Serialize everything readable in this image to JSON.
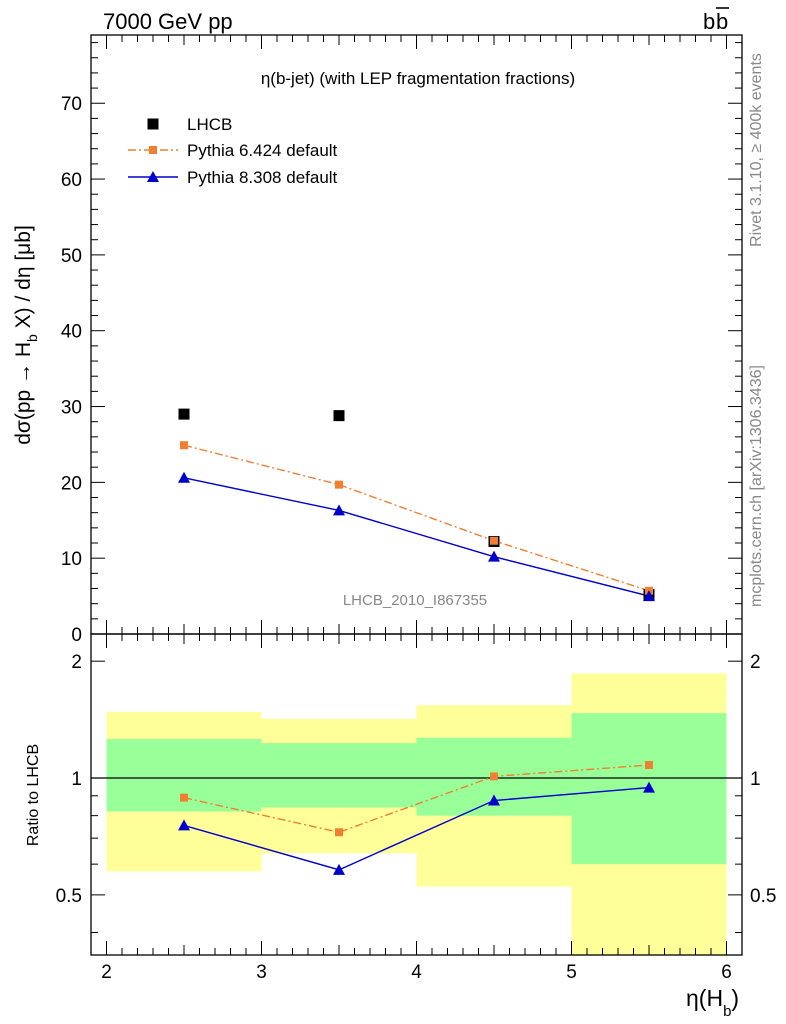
{
  "header": {
    "left": "7000 GeV pp",
    "right": "b",
    "right_bar": "b"
  },
  "side_text": {
    "top": "Rivet 3.1.10, ≥ 400k events",
    "bottom": "mcplots.cern.ch [arXiv:1306.3436]"
  },
  "colors": {
    "data": "#000000",
    "pythia6": "#f07f33",
    "pythia8": "#0000cc",
    "band_outer": "#ffff99",
    "band_inner": "#99ff99"
  },
  "chart_data": [
    {
      "type": "scatter",
      "title": "η(b-jet) (with LEP fragmentation fractions)",
      "ylabel": "dσ(pp → H_b X) / dη [μb]",
      "analysis_label": "LHCB_2010_I867355",
      "xlim": [
        1.9,
        6.1
      ],
      "ylim": [
        0,
        79
      ],
      "yticks": [
        0,
        10,
        20,
        30,
        40,
        50,
        60,
        70
      ],
      "legend_position": "top-left",
      "x": [
        2.5,
        3.5,
        4.5,
        5.5
      ],
      "series": [
        {
          "name": "LHCB",
          "style": "data",
          "values": [
            29.0,
            28.8,
            12.2,
            5.2
          ]
        },
        {
          "name": "Pythia 6.424 default",
          "style": "pythia6",
          "values": [
            24.9,
            19.7,
            12.3,
            5.7
          ]
        },
        {
          "name": "Pythia 8.308 default",
          "style": "pythia8",
          "values": [
            20.6,
            16.3,
            10.2,
            5.0
          ]
        }
      ]
    },
    {
      "type": "line",
      "ylabel": "Ratio to LHCB",
      "xlabel": "η(H_b)",
      "xlim": [
        1.9,
        6.1
      ],
      "ylim": [
        0.35,
        2.35
      ],
      "yscale": "log",
      "yticks": [
        0.5,
        1,
        2
      ],
      "xticks": [
        2,
        3,
        4,
        5,
        6
      ],
      "reference_line": 1,
      "bins": [
        {
          "low": 2,
          "high": 3,
          "inner": [
            0.82,
            1.26
          ],
          "outer": [
            0.575,
            1.48
          ]
        },
        {
          "low": 3,
          "high": 4,
          "inner": [
            0.84,
            1.23
          ],
          "outer": [
            0.64,
            1.42
          ]
        },
        {
          "low": 4,
          "high": 5,
          "inner": [
            0.8,
            1.27
          ],
          "outer": [
            0.525,
            1.54
          ]
        },
        {
          "low": 5,
          "high": 6,
          "inner": [
            0.6,
            1.47
          ],
          "outer": [
            0.35,
            1.86
          ]
        }
      ],
      "x": [
        2.5,
        3.5,
        4.5,
        5.5
      ],
      "series": [
        {
          "name": "Pythia 6.424 default",
          "style": "pythia6",
          "values": [
            0.89,
            0.725,
            1.01,
            1.08
          ]
        },
        {
          "name": "Pythia 8.308 default",
          "style": "pythia8",
          "values": [
            0.755,
            0.58,
            0.875,
            0.945
          ]
        }
      ]
    }
  ]
}
